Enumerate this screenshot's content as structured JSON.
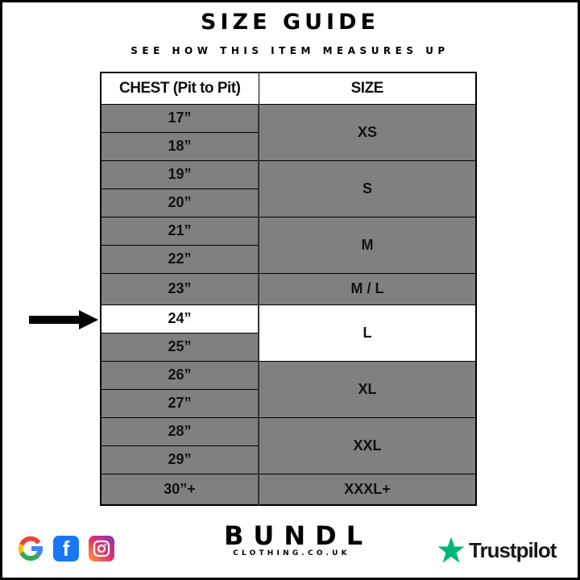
{
  "title": "SIZE GUIDE",
  "subtitle": "SEE HOW THIS ITEM MEASURES UP",
  "table": {
    "headers": [
      "CHEST (Pit to Pit)",
      "SIZE"
    ],
    "chest": [
      "17”",
      "18”",
      "19”",
      "20”",
      "21”",
      "22”",
      "23”",
      "24”",
      "25”",
      "26”",
      "27”",
      "28”",
      "29”",
      "30”+"
    ],
    "sizes": [
      {
        "label": "XS",
        "span": 2
      },
      {
        "label": "S",
        "span": 2
      },
      {
        "label": "M",
        "span": 2
      },
      {
        "label": "M / L",
        "span": 1
      },
      {
        "label": "L",
        "span": 2
      },
      {
        "label": "XL",
        "span": 2
      },
      {
        "label": "XXL",
        "span": 2
      },
      {
        "label": "XXXL+",
        "span": 1
      }
    ],
    "highlighted_chest": "24”",
    "highlighted_size": "L"
  },
  "colors": {
    "cell": "#808080",
    "highlight": "#ffffff",
    "trustpilot_star": "#00b67a"
  },
  "footer": {
    "social_icons": [
      "google-icon",
      "facebook-icon",
      "instagram-icon"
    ],
    "brand": "BUNDL",
    "brand_sub": "CLOTHING.CO.UK",
    "trustpilot": "Trustpilot"
  }
}
